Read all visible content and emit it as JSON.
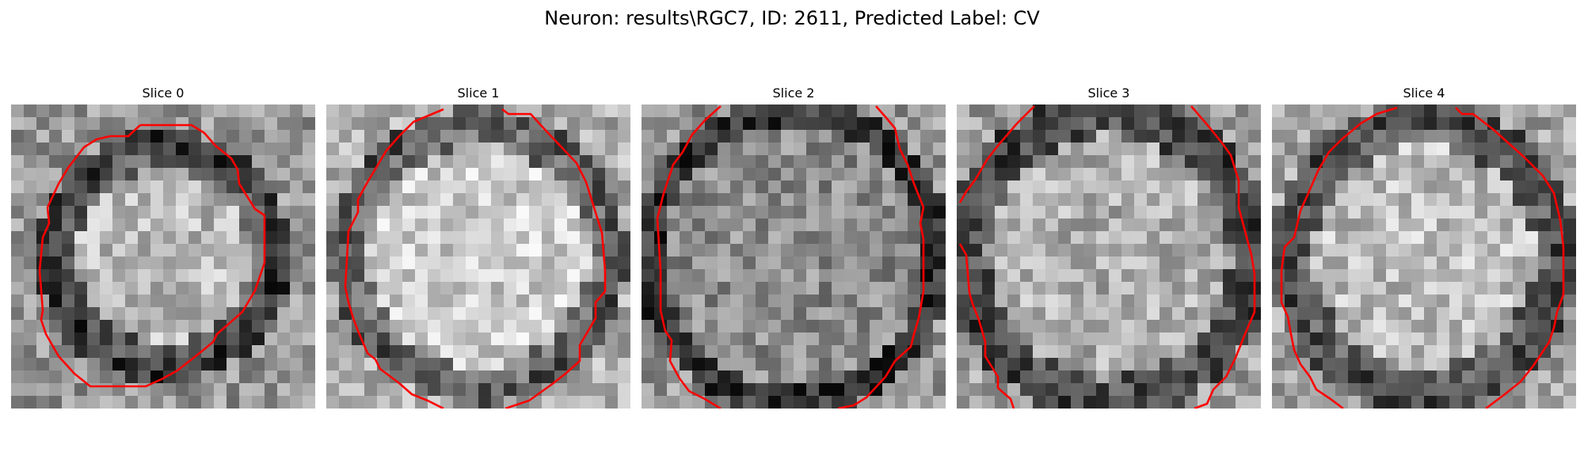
{
  "figure": {
    "title": "Neuron: results\\RGC7, ID: 2611, Predicted Label: CV"
  },
  "colors": {
    "contour": "#ff0000",
    "background": "#ffffff"
  },
  "slices": [
    {
      "title": "Slice 0"
    },
    {
      "title": "Slice 1"
    },
    {
      "title": "Slice 2"
    },
    {
      "title": "Slice 3"
    },
    {
      "title": "Slice 4"
    }
  ]
}
